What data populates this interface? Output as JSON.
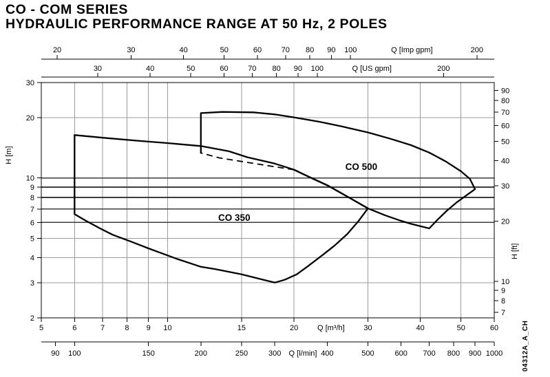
{
  "header": {
    "title_line1": "CO - COM SERIES",
    "title_line2": "HYDRAULIC PERFORMANCE RANGE AT 50 Hz, 2 POLES"
  },
  "side_code": "04312A_A_CH",
  "chart_data": {
    "type": "area",
    "title": "CO - COM series hydraulic performance range at 50 Hz, 2 poles",
    "scales": {
      "x": "log",
      "y": "log"
    },
    "x_range_m3h": [
      5,
      60
    ],
    "y_range_m": [
      2,
      30
    ],
    "x_axes": [
      {
        "id": "imp_gpm",
        "unit": "Q [Imp gpm]",
        "position": "top",
        "row": 0,
        "to_m3h": 0.27276,
        "ticks": [
          20,
          30,
          40,
          50,
          60,
          70,
          80,
          90,
          100,
          200
        ],
        "unit_label_at": 140
      },
      {
        "id": "us_gpm",
        "unit": "Q [US gpm]",
        "position": "top",
        "row": 1,
        "to_m3h": 0.22712,
        "ticks": [
          30,
          40,
          50,
          60,
          70,
          80,
          90,
          100,
          200
        ],
        "unit_label_at": 135
      },
      {
        "id": "m3h",
        "unit": "Q [m³/h]",
        "position": "bottom",
        "row": 0,
        "to_m3h": 1,
        "ticks": [
          5,
          6,
          7,
          8,
          9,
          10,
          15,
          20,
          30,
          40,
          50,
          60
        ],
        "unit_label_at": 24.5
      },
      {
        "id": "l_min",
        "unit": "Q [l/min]",
        "position": "bottom",
        "row": 1,
        "to_m3h": 0.06,
        "ticks": [
          90,
          100,
          150,
          200,
          250,
          300,
          400,
          500,
          600,
          700,
          800,
          900,
          1000
        ],
        "unit_label_at": 350
      }
    ],
    "y_axes": [
      {
        "id": "h_m",
        "unit": "H [m]",
        "position": "left",
        "to_m": 1,
        "ticks": [
          2,
          3,
          4,
          5,
          6,
          7,
          8,
          9,
          10,
          20,
          30
        ]
      },
      {
        "id": "h_ft",
        "unit": "H [ft]",
        "position": "right",
        "to_m": 0.3048,
        "ticks": [
          7,
          8,
          9,
          10,
          20,
          30,
          40,
          50,
          60,
          70,
          80,
          90
        ]
      }
    ],
    "grid": {
      "x_m3h": [
        6,
        7,
        8,
        9,
        10,
        15,
        20,
        30,
        40,
        50
      ],
      "y_m": [
        3,
        4,
        5,
        6,
        7,
        8,
        9,
        10,
        20
      ],
      "y_dark": [
        6,
        7,
        8,
        9,
        10
      ]
    },
    "series": [
      {
        "name": "CO 350",
        "label_pos": {
          "q": 13.2,
          "h": 6.35
        },
        "solid": [
          [
            6,
            6.6
          ],
          [
            6,
            16.4
          ],
          [
            7,
            15.9
          ],
          [
            8.5,
            15.35
          ],
          [
            10,
            14.95
          ],
          [
            12,
            14.45
          ],
          [
            14,
            13.6
          ],
          [
            15.5,
            12.7
          ],
          [
            18,
            11.8
          ],
          [
            20,
            11
          ],
          [
            22,
            10
          ],
          [
            24,
            9.2
          ],
          [
            27,
            8
          ],
          [
            30,
            7.05
          ],
          [
            28.5,
            6.1
          ],
          [
            26.8,
            5.25
          ],
          [
            25,
            4.6
          ],
          [
            23.5,
            4.15
          ],
          [
            21.5,
            3.6
          ],
          [
            20.3,
            3.3
          ],
          [
            19,
            3.1
          ],
          [
            18,
            3
          ],
          [
            15,
            3.3
          ],
          [
            13,
            3.5
          ],
          [
            12,
            3.6
          ],
          [
            10.5,
            3.95
          ],
          [
            9,
            4.45
          ],
          [
            8.2,
            4.8
          ],
          [
            7.4,
            5.2
          ],
          [
            6.9,
            5.6
          ],
          [
            6.4,
            6.1
          ],
          [
            6,
            6.6
          ]
        ],
        "dashed": []
      },
      {
        "name": "CO 500",
        "label_pos": {
          "q": 26.5,
          "h": 11.4
        },
        "solid": [
          [
            12,
            13.35
          ],
          [
            12,
            21.1
          ],
          [
            13.5,
            21.4
          ],
          [
            16,
            21.3
          ],
          [
            18,
            20.8
          ],
          [
            20,
            20.1
          ],
          [
            23,
            19.1
          ],
          [
            26,
            18.1
          ],
          [
            30,
            16.9
          ],
          [
            34,
            15.7
          ],
          [
            38,
            14.6
          ],
          [
            42,
            13.4
          ],
          [
            46,
            12.1
          ],
          [
            50,
            10.8
          ],
          [
            52.5,
            9.9
          ],
          [
            54,
            8.8
          ],
          [
            49,
            7.6
          ],
          [
            46.4,
            6.9
          ],
          [
            44,
            6.2
          ],
          [
            42,
            5.6
          ],
          [
            38,
            5.9
          ],
          [
            35.6,
            6.15
          ],
          [
            33,
            6.5
          ],
          [
            30,
            7.05
          ],
          [
            27,
            8
          ],
          [
            24,
            9.2
          ],
          [
            22,
            10
          ],
          [
            20,
            11
          ]
        ],
        "dashed": [
          [
            20,
            11
          ],
          [
            17,
            11.6
          ],
          [
            15,
            12.1
          ],
          [
            13.3,
            12.6
          ],
          [
            12,
            13.35
          ]
        ]
      }
    ]
  }
}
